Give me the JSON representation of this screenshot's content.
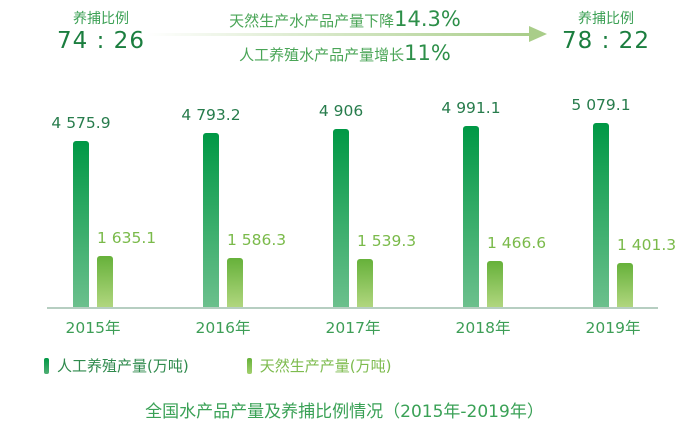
{
  "header": {
    "left_ratio": {
      "label": "养捕比例",
      "value": "74 : 26"
    },
    "right_ratio": {
      "label": "养捕比例",
      "value": "78 : 22"
    },
    "natural_change": {
      "text": "天然生产水产品产量下降",
      "value": "14.3%"
    },
    "farmed_change": {
      "text": "人工养殖水产品产量增长",
      "value": "11%"
    }
  },
  "chart_data": {
    "type": "bar",
    "title": "全国水产品产量及养捕比例情况（2015年-2019年）",
    "categories": [
      "2015年",
      "2016年",
      "2017年",
      "2018年",
      "2019年"
    ],
    "series": [
      {
        "name": "人工养殖产量(万吨)",
        "values": [
          4575.9,
          4793.2,
          4906,
          4991.1,
          5079.1
        ],
        "labels": [
          "4 575.9",
          "4 793.2",
          "4 906",
          "4 991.1",
          "5 079.1"
        ]
      },
      {
        "name": "天然生产产量(万吨)",
        "values": [
          1635.1,
          1586.3,
          1539.3,
          1466.6,
          1401.3
        ],
        "labels": [
          "1 635.1",
          "1 586.3",
          "1 539.3",
          "1 466.6",
          "1 401.3"
        ]
      }
    ],
    "ylim": [
      0,
      5300
    ],
    "grid": false,
    "legend_position": "bottom-left",
    "xlabel": "",
    "ylabel": ""
  },
  "colors": {
    "farmed_bar_top": "#009845",
    "farmed_bar_bottom": "#6cc08d",
    "natural_bar_top": "#66b13a",
    "natural_bar_bottom": "#b2d780",
    "farmed_value_label": "#277c4c",
    "natural_value_label": "#7aba4a",
    "text_green": "#3da156",
    "ratio_dark_green": "#1b7e3f",
    "axis": "#b6cec1",
    "arrow": "#a9cd89"
  }
}
